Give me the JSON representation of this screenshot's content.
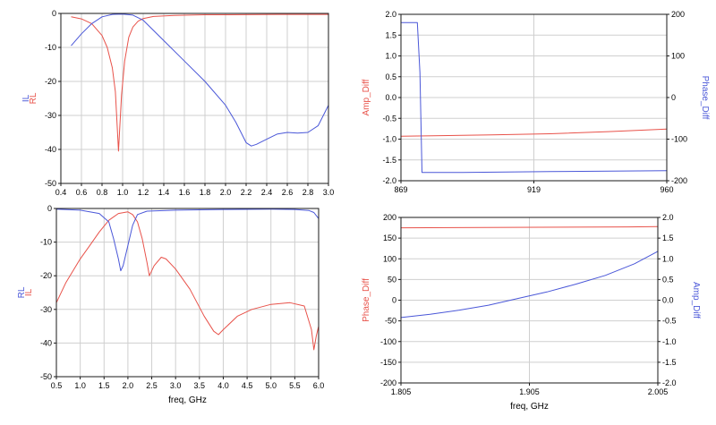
{
  "colors": {
    "red": "#e8524a",
    "blue": "#4a57d8",
    "grid": "#cfcfcf",
    "frame": "#1a1a1a"
  },
  "chart_data": [
    {
      "id": "top-left",
      "type": "line",
      "xlabel": "",
      "ylabels": [
        {
          "text": "IL",
          "color": "blue"
        },
        {
          "text": "RL",
          "color": "red"
        }
      ],
      "xlim": [
        0.4,
        3.0
      ],
      "ylim": [
        -50,
        0
      ],
      "xticks": [
        "0.4",
        "0.6",
        "0.8",
        "1.0",
        "1.2",
        "1.4",
        "1.6",
        "1.8",
        "2.0",
        "2.2",
        "2.4",
        "2.6",
        "2.8",
        "3.0"
      ],
      "yticks": [
        "0",
        "-10",
        "-20",
        "-30",
        "-40",
        "-50"
      ],
      "grid": true,
      "series": [
        {
          "color": "red",
          "x": [
            0.5,
            0.6,
            0.7,
            0.8,
            0.85,
            0.9,
            0.93,
            0.96,
            0.99,
            1.02,
            1.06,
            1.1,
            1.15,
            1.2,
            1.3,
            1.5,
            1.8,
            2.0,
            2.5,
            3.0
          ],
          "y": [
            -1,
            -1.6,
            -3,
            -6.5,
            -10,
            -16,
            -23,
            -40.5,
            -24,
            -14,
            -7,
            -4,
            -2.3,
            -1.5,
            -0.9,
            -0.6,
            -0.4,
            -0.4,
            -0.3,
            -0.3
          ]
        },
        {
          "color": "blue",
          "x": [
            0.5,
            0.6,
            0.7,
            0.8,
            0.9,
            1.0,
            1.1,
            1.2,
            1.3,
            1.4,
            1.6,
            1.8,
            2.0,
            2.1,
            2.2,
            2.25,
            2.3,
            2.4,
            2.5,
            2.6,
            2.7,
            2.8,
            2.9,
            3.0
          ],
          "y": [
            -9.5,
            -6,
            -3,
            -1,
            -0.3,
            -0.2,
            -0.5,
            -2,
            -5,
            -8,
            -14,
            -20,
            -27,
            -32,
            -38,
            -39,
            -38.5,
            -37,
            -35.5,
            -35,
            -35.2,
            -35,
            -33,
            -27
          ]
        }
      ]
    },
    {
      "id": "top-right",
      "type": "line",
      "xlabel": "",
      "xlim": [
        869,
        960
      ],
      "xticks": [
        "869",
        "919",
        "960"
      ],
      "ylim": [
        -2.0,
        2.0
      ],
      "yticks": [
        "2.0",
        "1.5",
        "1.0",
        "0.5",
        "0.0",
        "-0.5",
        "-1.0",
        "-1.5",
        "-2.0"
      ],
      "ylabel_left": {
        "text": "Amp_Diff",
        "color": "red"
      },
      "y2lim": [
        -200,
        200
      ],
      "y2ticks": [
        "200",
        "100",
        "0",
        "-100",
        "-200"
      ],
      "ylabel_right": {
        "text": "Phase_Diff",
        "color": "blue"
      },
      "grid": true,
      "series": [
        {
          "color": "red",
          "axis": "left",
          "x": [
            869,
            880,
            900,
            920,
            940,
            960
          ],
          "y": [
            -0.93,
            -0.92,
            -0.9,
            -0.87,
            -0.82,
            -0.76
          ]
        },
        {
          "color": "blue",
          "axis": "right",
          "x": [
            869,
            874.5,
            874.6,
            875.5,
            876.2,
            890,
            920,
            960
          ],
          "y": [
            180,
            180,
            180,
            60,
            -180,
            -180,
            -178,
            -176
          ]
        }
      ]
    },
    {
      "id": "bottom-left",
      "type": "line",
      "xlabel": "freq, GHz",
      "ylabels": [
        {
          "text": "RL",
          "color": "blue"
        },
        {
          "text": "IL",
          "color": "red"
        }
      ],
      "xlim": [
        0.5,
        6.0
      ],
      "ylim": [
        -50,
        0
      ],
      "xticks": [
        "0.5",
        "1.0",
        "1.5",
        "2.0",
        "2.5",
        "3.0",
        "3.5",
        "4.0",
        "4.5",
        "5.0",
        "5.5",
        "6.0"
      ],
      "yticks": [
        "0",
        "-10",
        "-20",
        "-30",
        "-40",
        "-50"
      ],
      "grid": true,
      "series": [
        {
          "color": "red",
          "x": [
            0.5,
            0.7,
            1.0,
            1.2,
            1.4,
            1.6,
            1.8,
            2.0,
            2.1,
            2.2,
            2.3,
            2.4,
            2.45,
            2.55,
            2.7,
            2.8,
            3.0,
            3.3,
            3.6,
            3.8,
            3.9,
            4.0,
            4.3,
            4.6,
            5.0,
            5.4,
            5.7,
            5.85,
            5.9,
            5.95,
            6.0
          ],
          "y": [
            -28,
            -22,
            -15,
            -11,
            -7,
            -3.5,
            -1.5,
            -1,
            -1.8,
            -4,
            -9,
            -16,
            -20,
            -17,
            -14.5,
            -15,
            -18,
            -24,
            -32,
            -36.5,
            -37.5,
            -36,
            -32,
            -30,
            -28.5,
            -28,
            -29,
            -36,
            -42,
            -38,
            -35
          ]
        },
        {
          "color": "blue",
          "x": [
            0.5,
            1.0,
            1.4,
            1.6,
            1.7,
            1.8,
            1.85,
            1.9,
            2.0,
            2.1,
            2.2,
            2.4,
            3.0,
            4.0,
            5.0,
            5.5,
            5.8,
            5.9,
            6.0
          ],
          "y": [
            -0.2,
            -0.5,
            -1.5,
            -4,
            -9,
            -15,
            -18.5,
            -17,
            -11,
            -5,
            -1.8,
            -0.8,
            -0.5,
            -0.3,
            -0.2,
            -0.3,
            -0.6,
            -1.2,
            -3
          ]
        }
      ]
    },
    {
      "id": "bottom-right",
      "type": "line",
      "xlabel": "freq, GHz",
      "xlim": [
        1.805,
        2.025
      ],
      "xticks": [
        "1.805",
        "1.905",
        "2.005"
      ],
      "ylim": [
        -200,
        200
      ],
      "yticks": [
        "200",
        "150",
        "100",
        "50",
        "0",
        "-50",
        "-100",
        "-150",
        "-200"
      ],
      "ylabel_left": {
        "text": "Phase_Diff",
        "color": "red"
      },
      "y2lim": [
        -2.0,
        2.0
      ],
      "y2ticks": [
        "2.0",
        "1.5",
        "1.0",
        "0.5",
        "0.0",
        "-0.5",
        "-1.0",
        "-1.5",
        "-2.0"
      ],
      "ylabel_right": {
        "text": "Amp_Diff",
        "color": "blue"
      },
      "grid": true,
      "series": [
        {
          "color": "red",
          "axis": "left",
          "x": [
            1.805,
            1.9,
            2.0,
            2.025
          ],
          "y": [
            175,
            176,
            177,
            178
          ]
        },
        {
          "color": "blue",
          "axis": "right",
          "x": [
            1.805,
            1.83,
            1.855,
            1.88,
            1.905,
            1.93,
            1.955,
            1.98,
            2.005,
            2.025
          ],
          "y": [
            -0.42,
            -0.34,
            -0.24,
            -0.12,
            0.04,
            0.2,
            0.39,
            0.6,
            0.88,
            1.18
          ]
        }
      ]
    }
  ]
}
